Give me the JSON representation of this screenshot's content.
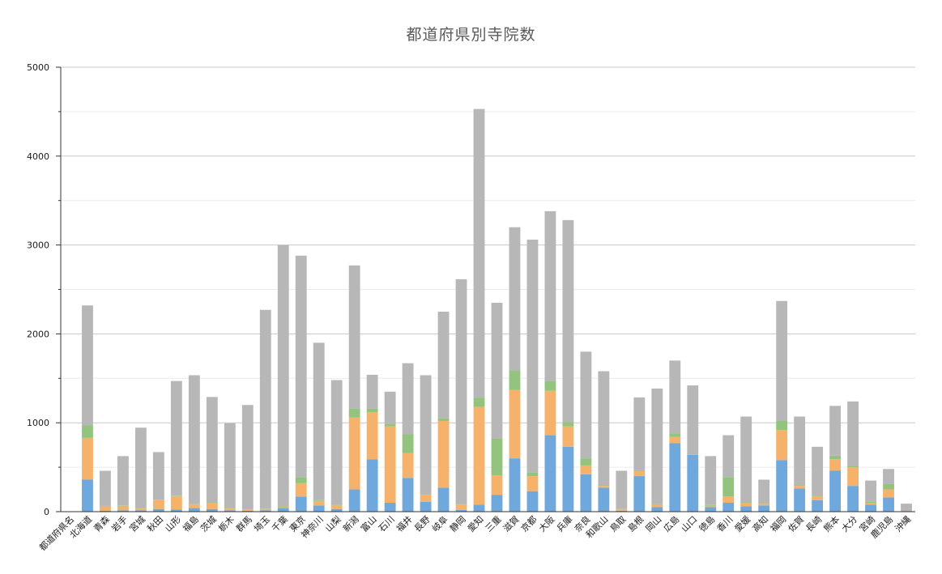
{
  "chart_data": {
    "type": "bar",
    "stacked": true,
    "title": "都道府県別寺院数",
    "xlabel": "",
    "ylabel": "",
    "ylim": [
      0,
      5000
    ],
    "yticks": [
      0,
      1000,
      2000,
      3000,
      4000,
      5000
    ],
    "grid": true,
    "legend": "none",
    "colors": [
      "#6fa8dc",
      "#f6b26b",
      "#93c47d",
      "#b7b7b7"
    ],
    "categories": [
      "都道府県名",
      "北海道",
      "青森",
      "岩手",
      "宮城",
      "秋田",
      "山形",
      "福島",
      "茨城",
      "栃木",
      "群馬",
      "埼玉",
      "千葉",
      "東京",
      "神奈川",
      "山梨",
      "新潟",
      "富山",
      "石川",
      "福井",
      "長野",
      "岐阜",
      "静岡",
      "愛知",
      "三重",
      "滋賀",
      "京都",
      "大阪",
      "兵庫",
      "奈良",
      "和歌山",
      "鳥取",
      "島根",
      "岡山",
      "広島",
      "山口",
      "徳島",
      "香川",
      "愛媛",
      "高知",
      "福岡",
      "佐賀",
      "長崎",
      "熊本",
      "大分",
      "宮崎",
      "鹿児島",
      "沖縄"
    ],
    "series": [
      {
        "values": [
          0,
          360,
          10,
          15,
          15,
          30,
          25,
          40,
          30,
          15,
          10,
          15,
          40,
          170,
          70,
          30,
          250,
          590,
          100,
          380,
          110,
          270,
          20,
          80,
          190,
          600,
          230,
          860,
          730,
          420,
          270,
          10,
          400,
          50,
          770,
          640,
          50,
          100,
          60,
          70,
          580,
          260,
          130,
          460,
          290,
          80,
          160,
          0
        ]
      },
      {
        "values": [
          0,
          470,
          50,
          50,
          20,
          100,
          150,
          40,
          70,
          20,
          10,
          15,
          10,
          150,
          50,
          40,
          810,
          530,
          860,
          280,
          80,
          750,
          60,
          1100,
          220,
          770,
          170,
          500,
          230,
          100,
          20,
          15,
          60,
          25,
          70,
          0,
          15,
          70,
          40,
          20,
          340,
          30,
          40,
          130,
          210,
          20,
          90,
          0
        ]
      },
      {
        "values": [
          0,
          140,
          5,
          5,
          5,
          5,
          5,
          5,
          5,
          5,
          5,
          5,
          5,
          70,
          10,
          5,
          100,
          40,
          30,
          210,
          5,
          30,
          5,
          100,
          410,
          220,
          40,
          110,
          50,
          80,
          10,
          5,
          5,
          10,
          40,
          0,
          10,
          220,
          5,
          5,
          100,
          10,
          10,
          40,
          10,
          10,
          60,
          0
        ]
      },
      {
        "values": [
          0,
          1350,
          395,
          555,
          905,
          535,
          1290,
          1450,
          1185,
          955,
          1175,
          2235,
          2945,
          2490,
          1770,
          1405,
          1610,
          380,
          360,
          800,
          1340,
          1200,
          2530,
          3250,
          1530,
          1610,
          2620,
          1910,
          2270,
          1200,
          1280,
          430,
          820,
          1300,
          820,
          780,
          550,
          470,
          965,
          265,
          1350,
          770,
          550,
          560,
          730,
          240,
          170,
          90
        ]
      }
    ]
  }
}
